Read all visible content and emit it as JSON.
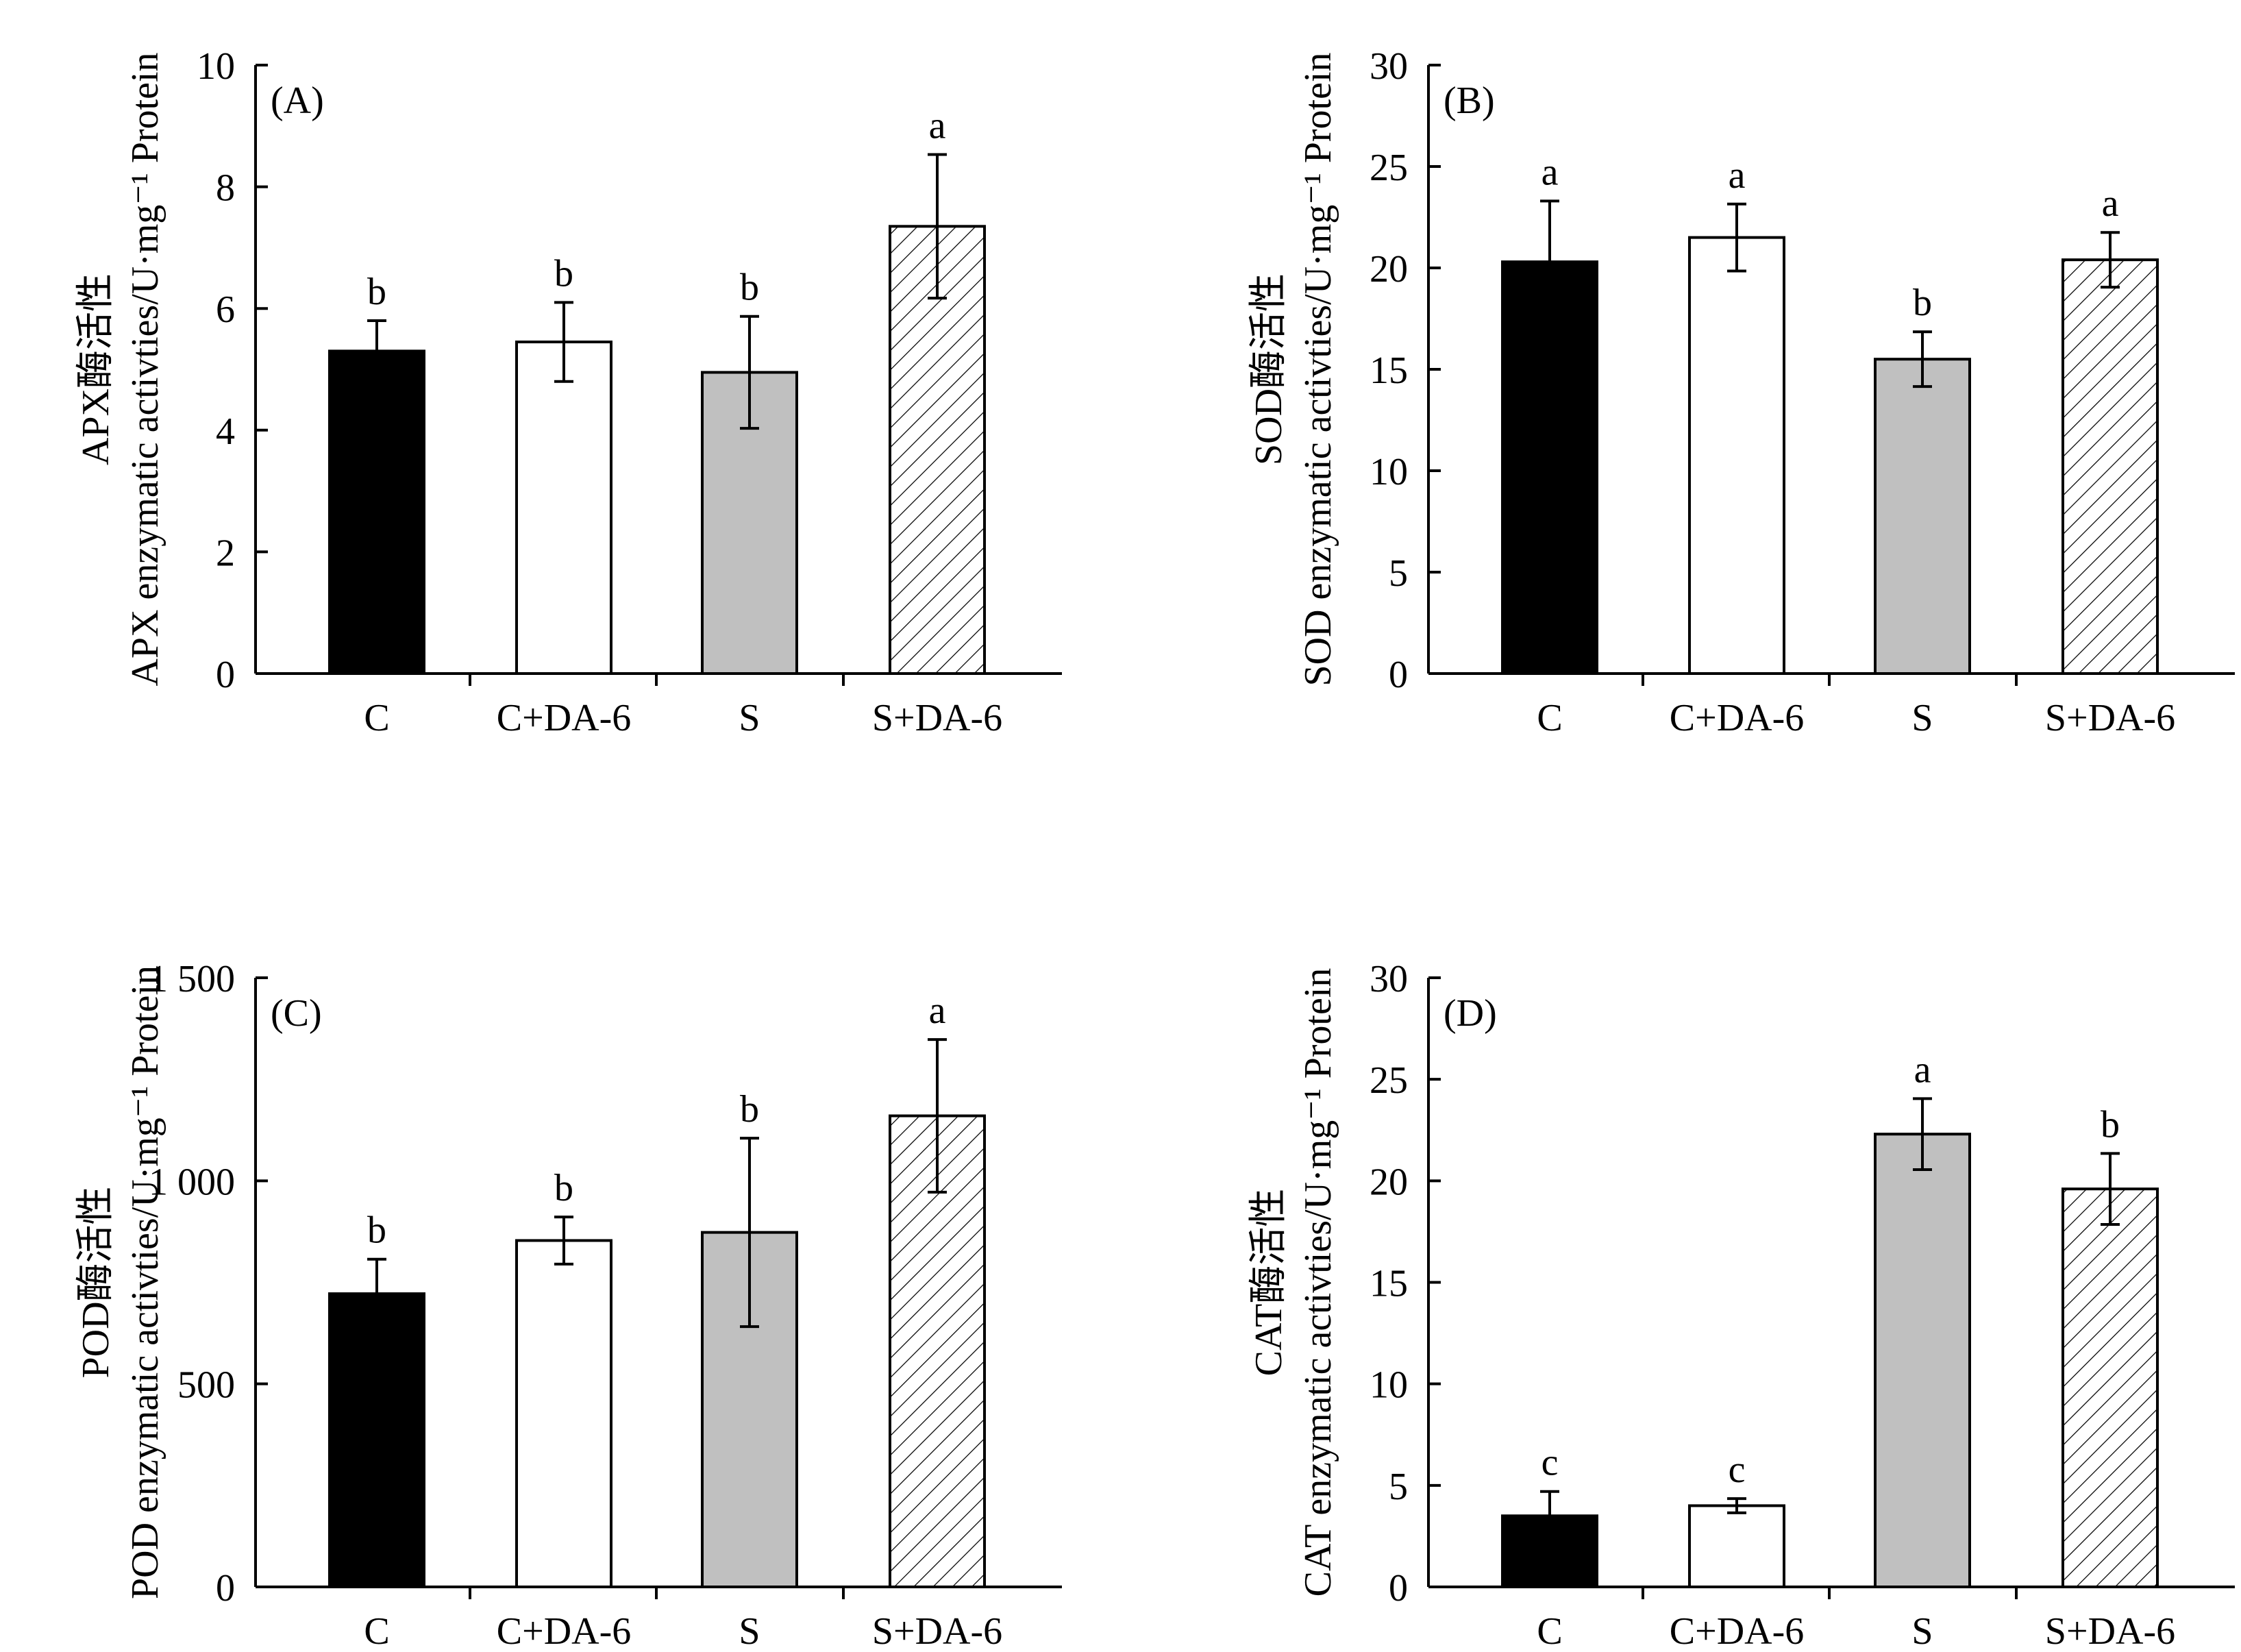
{
  "colors": {
    "C": "#000000",
    "C+DA-6": "#ffffff",
    "S": "#c0c0c0",
    "S+DA-6": "hatch"
  },
  "chart_data": [
    {
      "type": "bar",
      "panel_label": "(A)",
      "ylabel_line1": "APX酶活性",
      "ylabel_line2": "APX enzymatic activties/U·mg⁻¹ Protein",
      "ylim": [
        0,
        10
      ],
      "yticks": [
        0,
        2,
        4,
        6,
        8,
        10
      ],
      "ytick_labels": [
        "0",
        "2",
        "4",
        "6",
        "8",
        "10"
      ],
      "categories": [
        "C",
        "C+DA-6",
        "S",
        "S+DA-6"
      ],
      "values": [
        5.3,
        5.45,
        4.95,
        7.35
      ],
      "errors": [
        0.5,
        0.65,
        0.92,
        1.18
      ],
      "letters": [
        "b",
        "b",
        "b",
        "a"
      ]
    },
    {
      "type": "bar",
      "panel_label": "(B)",
      "ylabel_line1": "SOD酶活性",
      "ylabel_line2": "SOD enzymatic activties/U·mg⁻¹ Protein",
      "ylim": [
        0,
        30
      ],
      "yticks": [
        0,
        5,
        10,
        15,
        20,
        25,
        30
      ],
      "ytick_labels": [
        "0",
        "5",
        "10",
        "15",
        "20",
        "25",
        "30"
      ],
      "categories": [
        "C",
        "C+DA-6",
        "S",
        "S+DA-6"
      ],
      "values": [
        20.3,
        21.5,
        15.5,
        20.4
      ],
      "errors": [
        3.0,
        1.65,
        1.35,
        1.35
      ],
      "letters": [
        "a",
        "a",
        "b",
        "a"
      ]
    },
    {
      "type": "bar",
      "panel_label": "(C)",
      "ylabel_line1": "POD酶活性",
      "ylabel_line2": "POD enzymatic activties/U·mg⁻¹ Protein",
      "ylim": [
        0,
        1500
      ],
      "yticks": [
        0,
        500,
        1000,
        1500
      ],
      "ytick_labels": [
        "0",
        "500",
        "1 000",
        "1 500"
      ],
      "categories": [
        "C",
        "C+DA-6",
        "S",
        "S+DA-6"
      ],
      "values": [
        722,
        853,
        873,
        1160
      ],
      "errors": [
        85,
        58,
        232,
        188
      ],
      "letters": [
        "b",
        "b",
        "b",
        "a"
      ]
    },
    {
      "type": "bar",
      "panel_label": "(D)",
      "ylabel_line1": "CAT酶活性",
      "ylabel_line2": "CAT enzymatic activties/U·mg⁻¹ Protein",
      "ylim": [
        0,
        30
      ],
      "yticks": [
        0,
        5,
        10,
        15,
        20,
        25,
        30
      ],
      "ytick_labels": [
        "0",
        "5",
        "10",
        "15",
        "20",
        "25",
        "30"
      ],
      "categories": [
        "C",
        "C+DA-6",
        "S",
        "S+DA-6"
      ],
      "values": [
        3.5,
        4.0,
        22.3,
        19.6
      ],
      "errors": [
        1.2,
        0.35,
        1.75,
        1.75
      ],
      "letters": [
        "c",
        "c",
        "a",
        "b"
      ]
    }
  ]
}
